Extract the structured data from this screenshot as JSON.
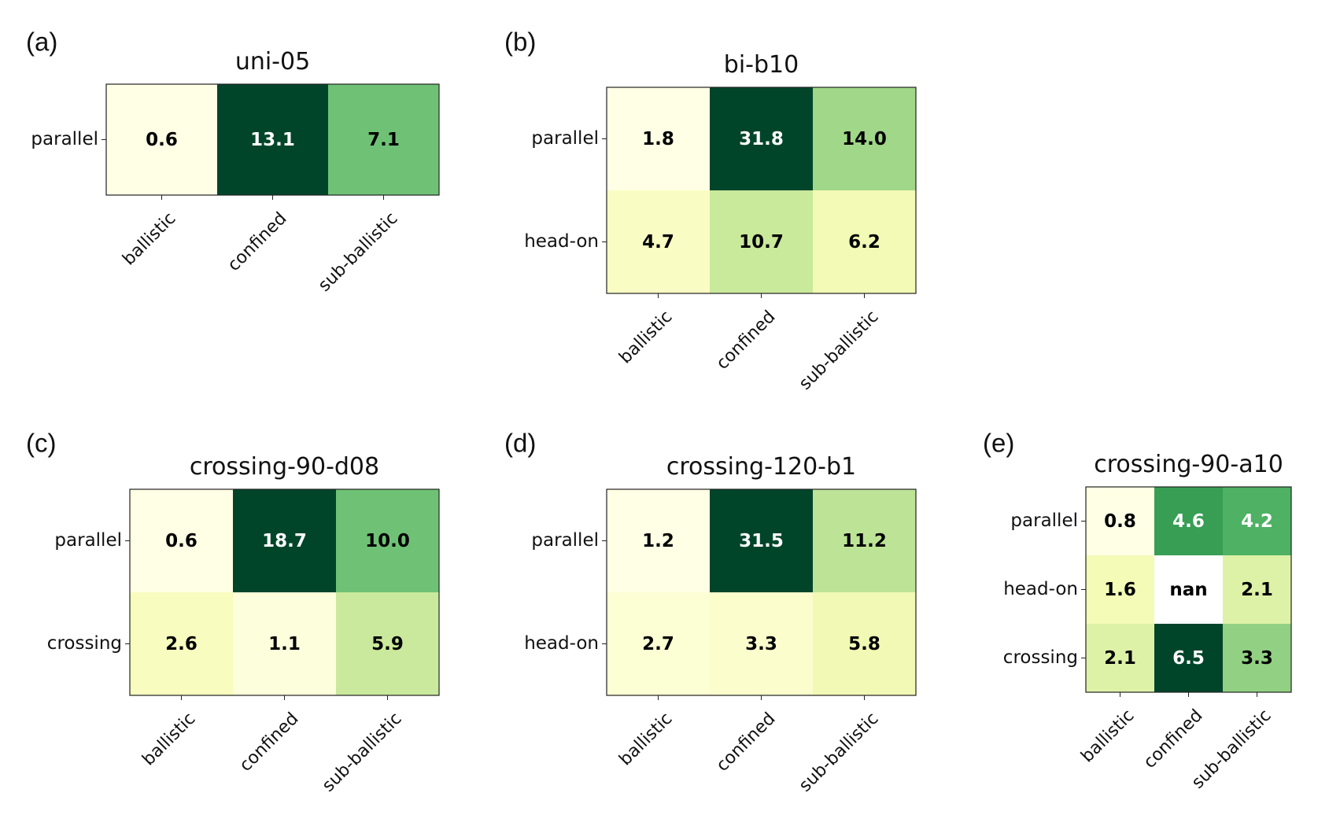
{
  "chart_data": [
    {
      "type": "heatmap",
      "panel_label": "(a)",
      "title": "uni-05",
      "rows": [
        "parallel"
      ],
      "cols": [
        "ballistic",
        "confined",
        "sub-ballistic"
      ],
      "values": [
        [
          0.6,
          13.1,
          7.1
        ]
      ],
      "colormap": "YlGn"
    },
    {
      "type": "heatmap",
      "panel_label": "(b)",
      "title": "bi-b10",
      "rows": [
        "parallel",
        "head-on"
      ],
      "cols": [
        "ballistic",
        "confined",
        "sub-ballistic"
      ],
      "values": [
        [
          1.8,
          31.8,
          14.0
        ],
        [
          4.7,
          10.7,
          6.2
        ]
      ],
      "colormap": "YlGn"
    },
    {
      "type": "heatmap",
      "panel_label": "(c)",
      "title": "crossing-90-d08",
      "rows": [
        "parallel",
        "crossing"
      ],
      "cols": [
        "ballistic",
        "confined",
        "sub-ballistic"
      ],
      "values": [
        [
          0.6,
          18.7,
          10.0
        ],
        [
          2.6,
          1.1,
          5.9
        ]
      ],
      "colormap": "YlGn"
    },
    {
      "type": "heatmap",
      "panel_label": "(d)",
      "title": "crossing-120-b1",
      "rows": [
        "parallel",
        "head-on"
      ],
      "cols": [
        "ballistic",
        "confined",
        "sub-ballistic"
      ],
      "values": [
        [
          1.2,
          31.5,
          11.2
        ],
        [
          2.7,
          3.3,
          5.8
        ]
      ],
      "colormap": "YlGn"
    },
    {
      "type": "heatmap",
      "panel_label": "(e)",
      "title": "crossing-90-a10",
      "rows": [
        "parallel",
        "head-on",
        "crossing"
      ],
      "cols": [
        "ballistic",
        "confined",
        "sub-ballistic"
      ],
      "values": [
        [
          0.8,
          4.6,
          4.2
        ],
        [
          1.6,
          null,
          2.1
        ],
        [
          2.1,
          6.5,
          3.3
        ]
      ],
      "missing_label": "nan",
      "colormap": "YlGn"
    }
  ]
}
